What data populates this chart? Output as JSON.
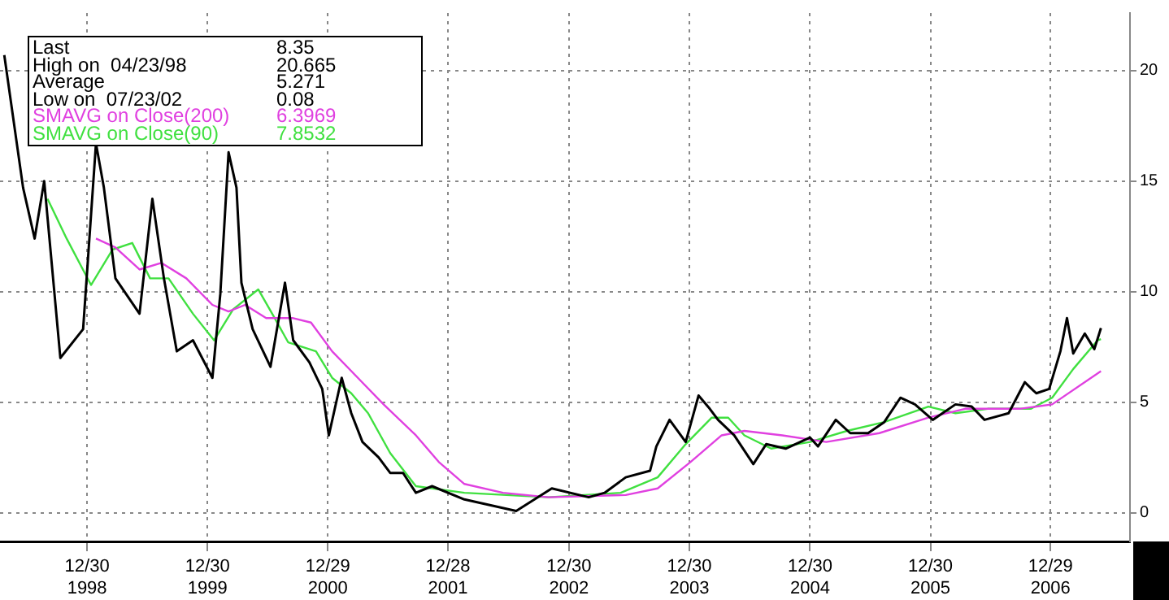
{
  "chart_data": {
    "type": "line",
    "annotations": [
      "Last 8.35",
      "High on  04/23/98 20.665",
      "Average 5.271",
      "Low on  07/23/02 0.08",
      "6.3969",
      "7.8532"
    ],
    "xlim": [
      "1998-04-10",
      "2007-08-27"
    ],
    "xticks": [
      {
        "value": "1998-12-30",
        "label": "12/30\n1998"
      },
      {
        "value": "1999-12-30",
        "label": "12/30\n1999"
      },
      {
        "value": "2000-12-29",
        "label": "12/29\n2000"
      },
      {
        "value": "2001-12-28",
        "label": "12/28\n2001"
      },
      {
        "value": "2002-12-30",
        "label": "12/30\n2002"
      },
      {
        "value": "2003-12-30",
        "label": "12/30\n2003"
      },
      {
        "value": "2004-12-30",
        "label": "12/30\n2004"
      },
      {
        "value": "2005-12-30",
        "label": "12/30\n2005"
      },
      {
        "value": "2006-12-29",
        "label": "12/29\n2006"
      }
    ],
    "ylim": [
      -1.3,
      22.6
    ],
    "yticks": [
      0,
      5,
      10,
      15,
      20
    ],
    "grid": true,
    "legend": "top left",
    "marker": "none",
    "line_style": "solid",
    "series": [
      {
        "color": "#000000",
        "x": [
          "1998-04-23",
          "1998-06-19",
          "1998-07-24",
          "1998-08-22",
          "1998-10-10",
          "1998-12-18",
          "1999-01-26",
          "1999-02-19",
          "1999-03-26",
          "1999-06-07",
          "1999-07-16",
          "1999-08-20",
          "1999-09-28",
          "1999-11-16",
          "2000-01-14",
          "2000-02-07",
          "2000-03-03",
          "2000-03-27",
          "2000-04-11",
          "2000-05-15",
          "2000-07-08",
          "2000-08-21",
          "2000-09-15",
          "2000-11-03",
          "2000-12-12",
          "2001-01-01",
          "2001-02-09",
          "2001-03-10",
          "2001-04-13",
          "2001-06-01",
          "2001-07-06",
          "2001-08-14",
          "2001-09-22",
          "2001-11-10",
          "2002-02-16",
          "2002-07-23",
          "2002-11-08",
          "2003-02-28",
          "2003-04-17",
          "2003-06-20",
          "2003-09-02",
          "2003-09-21",
          "2003-10-31",
          "2003-12-19",
          "2004-01-27",
          "2004-03-01",
          "2004-03-26",
          "2004-05-14",
          "2004-07-11",
          "2004-08-19",
          "2004-10-17",
          "2004-12-30",
          "2005-01-23",
          "2005-03-18",
          "2005-05-01",
          "2005-06-24",
          "2005-08-12",
          "2005-09-30",
          "2005-11-13",
          "2006-01-06",
          "2006-03-16",
          "2006-05-04",
          "2006-06-12",
          "2006-08-24",
          "2006-10-12",
          "2006-11-16",
          "2006-12-25",
          "2007-01-28",
          "2007-02-17",
          "2007-03-08",
          "2007-04-12",
          "2007-05-11",
          "2007-05-31"
        ],
        "values": [
          20.7,
          14.7,
          12.4,
          15.0,
          7.0,
          8.3,
          16.7,
          14.7,
          10.6,
          9.0,
          14.2,
          10.6,
          7.3,
          7.8,
          6.1,
          9.9,
          16.3,
          14.7,
          10.4,
          8.3,
          6.6,
          10.4,
          7.8,
          6.8,
          5.6,
          3.5,
          6.1,
          4.5,
          3.2,
          2.5,
          1.8,
          1.8,
          0.9,
          1.2,
          0.6,
          0.08,
          1.1,
          0.7,
          0.9,
          1.6,
          1.9,
          3.0,
          4.2,
          3.2,
          5.3,
          4.7,
          4.2,
          3.5,
          2.2,
          3.1,
          2.9,
          3.4,
          3.0,
          4.2,
          3.6,
          3.6,
          4.1,
          5.2,
          4.9,
          4.2,
          4.9,
          4.8,
          4.2,
          4.5,
          5.9,
          5.4,
          5.6,
          7.3,
          8.8,
          7.2,
          8.1,
          7.4,
          8.35
        ]
      },
      {
        "name": "SMAVG on Close(200)",
        "color": "#e040e0",
        "x": [
          "1999-01-26",
          "1999-03-26",
          "1999-06-07",
          "1999-08-12",
          "1999-10-27",
          "2000-01-14",
          "2000-03-03",
          "2000-04-22",
          "2000-06-25",
          "2000-09-15",
          "2000-11-08",
          "2001-01-11",
          "2001-03-30",
          "2001-06-16",
          "2001-09-22",
          "2001-11-30",
          "2002-02-16",
          "2002-06-13",
          "2002-10-29",
          "2003-06-20",
          "2003-09-25",
          "2004-01-03",
          "2004-04-06",
          "2004-06-14",
          "2004-10-07",
          "2005-02-17",
          "2005-07-28",
          "2005-12-24",
          "2006-04-14",
          "2006-09-26",
          "2007-01-03",
          "2007-05-21",
          "2007-05-31"
        ],
        "values": [
          12.4,
          12.0,
          11.0,
          11.3,
          10.6,
          9.4,
          9.1,
          9.4,
          8.8,
          8.8,
          8.6,
          7.3,
          6.1,
          4.9,
          3.5,
          2.3,
          1.3,
          0.9,
          0.7,
          0.8,
          1.1,
          2.3,
          3.5,
          3.7,
          3.5,
          3.2,
          3.6,
          4.3,
          4.7,
          4.7,
          4.9,
          6.3,
          6.4
        ]
      },
      {
        "name": "SMAVG on Close(90)",
        "color": "#40e040",
        "x": [
          "1998-09-01",
          "1998-10-29",
          "1999-01-11",
          "1999-03-17",
          "1999-05-16",
          "1999-07-09",
          "1999-09-03",
          "1999-11-16",
          "2000-01-19",
          "2000-03-17",
          "2000-06-01",
          "2000-07-21",
          "2000-08-31",
          "2000-11-23",
          "2001-01-11",
          "2001-03-10",
          "2001-04-30",
          "2001-07-06",
          "2001-09-22",
          "2002-02-16",
          "2002-10-29",
          "2003-06-05",
          "2003-09-25",
          "2003-12-19",
          "2004-03-07",
          "2004-04-26",
          "2004-06-14",
          "2004-09-03",
          "2004-12-30",
          "2005-04-21",
          "2005-08-12",
          "2005-12-24",
          "2006-03-16",
          "2006-06-22",
          "2006-10-30",
          "2007-01-03",
          "2007-03-08",
          "2007-05-21",
          "2007-05-31"
        ],
        "values": [
          14.2,
          12.4,
          10.3,
          11.9,
          12.2,
          10.6,
          10.6,
          9.0,
          7.8,
          9.2,
          10.1,
          8.8,
          7.7,
          7.3,
          6.1,
          5.4,
          4.5,
          2.7,
          1.2,
          0.9,
          0.7,
          0.9,
          1.6,
          3.1,
          4.3,
          4.3,
          3.5,
          2.9,
          3.2,
          3.7,
          4.1,
          4.8,
          4.5,
          4.7,
          4.7,
          5.2,
          6.5,
          7.8,
          7.85
        ]
      }
    ]
  }
}
